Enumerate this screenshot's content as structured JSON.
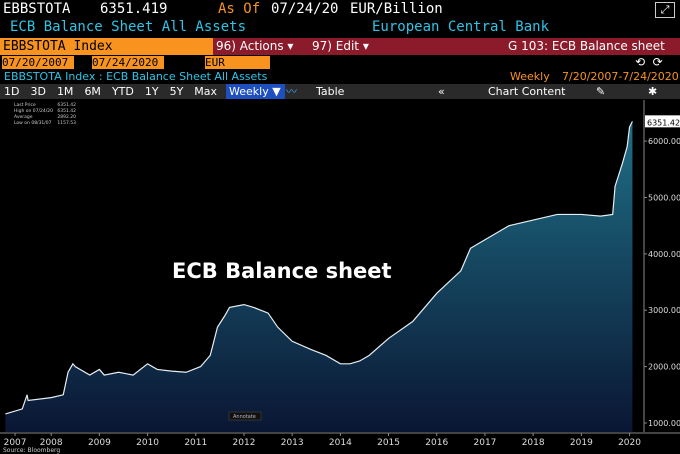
{
  "header": {
    "ticker": "EBBSTOTA",
    "last": "6351.419",
    "as_of_label": "As Of",
    "as_of_date": "07/24/20",
    "units": "EUR/Billion",
    "name": "ECB Balance Sheet All Assets",
    "source_name": "European Central Bank"
  },
  "command_bar": {
    "security": "EBBSTOTA Index",
    "actions": "96) Actions ▾",
    "edit": "97) Edit ▾",
    "chart_name": "G 103: ECB Balance sheet"
  },
  "date_bar": {
    "start": "07/20/2007",
    "end": "07/24/2020",
    "currency": "EUR"
  },
  "info_bar": {
    "description": "EBBSTOTA Index : ECB Balance Sheet All Assets",
    "frequency": "Weekly",
    "range": "7/20/2007-7/24/2020"
  },
  "toolbar": {
    "buttons": [
      "1D",
      "3D",
      "1M",
      "6M",
      "YTD",
      "1Y",
      "5Y",
      "Max"
    ],
    "period": "Weekly ▼",
    "table": "Table",
    "chart_content": "Chart Content"
  },
  "chart_data": {
    "type": "line",
    "area": true,
    "color": "#e6eef2",
    "fill_top": "#1f6f86",
    "fill_bottom": "#0a1633",
    "annotation": "ECB Balance sheet",
    "annotate_label": "Annotate",
    "last_label": "6351.42",
    "source": "Source: Bloomberg",
    "legend_stats": [
      [
        "Last Price",
        "6351.42"
      ],
      [
        "High on 07/24/20",
        "6351.42"
      ],
      [
        "Average",
        "2892.20"
      ],
      [
        "Low on 08/31/07",
        "1157.53"
      ]
    ],
    "x": [
      2007.55,
      2007.9,
      2008.0,
      2008.02,
      2008.5,
      2008.75,
      2008.85,
      2008.95,
      2009.0,
      2009.3,
      2009.5,
      2009.6,
      2009.9,
      2010.2,
      2010.5,
      2010.7,
      2011.0,
      2011.3,
      2011.6,
      2011.8,
      2011.95,
      2012.1,
      2012.2,
      2012.5,
      2012.7,
      2013.0,
      2013.2,
      2013.5,
      2013.9,
      2014.2,
      2014.5,
      2014.7,
      2014.9,
      2015.1,
      2015.5,
      2016.0,
      2016.5,
      2017.0,
      2017.2,
      2017.5,
      2018.0,
      2018.5,
      2019.0,
      2019.5,
      2019.9,
      2020.15,
      2020.2,
      2020.35,
      2020.45,
      2020.5,
      2020.56
    ],
    "series": [
      {
        "values": [
          1160,
          1250,
          1500,
          1400,
          1450,
          1500,
          1900,
          2050,
          2000,
          1850,
          1950,
          1850,
          1900,
          1850,
          2050,
          1950,
          1920,
          1900,
          2000,
          2200,
          2700,
          2900,
          3050,
          3100,
          3050,
          2950,
          2700,
          2450,
          2300,
          2200,
          2050,
          2050,
          2100,
          2200,
          2500,
          2800,
          3300,
          3700,
          4100,
          4250,
          4500,
          4600,
          4700,
          4700,
          4670,
          4700,
          5200,
          5600,
          5900,
          6250,
          6351.42
        ]
      }
    ],
    "xlim": [
      2007.5,
      2020.8
    ],
    "ylim": [
      840,
      6730
    ],
    "xticks": [
      {
        "value": 2007.75,
        "label": "2007"
      },
      {
        "value": 2008.5,
        "label": "2008"
      },
      {
        "value": 2009.5,
        "label": "2009"
      },
      {
        "value": 2010.5,
        "label": "2010"
      },
      {
        "value": 2011.5,
        "label": "2011"
      },
      {
        "value": 2012.5,
        "label": "2012"
      },
      {
        "value": 2013.5,
        "label": "2013"
      },
      {
        "value": 2014.5,
        "label": "2014"
      },
      {
        "value": 2015.5,
        "label": "2015"
      },
      {
        "value": 2016.5,
        "label": "2016"
      },
      {
        "value": 2017.5,
        "label": "2017"
      },
      {
        "value": 2018.5,
        "label": "2018"
      },
      {
        "value": 2019.5,
        "label": "2019"
      },
      {
        "value": 2020.5,
        "label": "2020"
      }
    ],
    "yticks": [
      {
        "value": 1000,
        "label": "1000.00"
      },
      {
        "value": 2000,
        "label": "2000.00"
      },
      {
        "value": 3000,
        "label": "3000.00"
      },
      {
        "value": 4000,
        "label": "4000.00"
      },
      {
        "value": 5000,
        "label": "5000.00"
      },
      {
        "value": 6000,
        "label": "6000.00"
      }
    ]
  }
}
